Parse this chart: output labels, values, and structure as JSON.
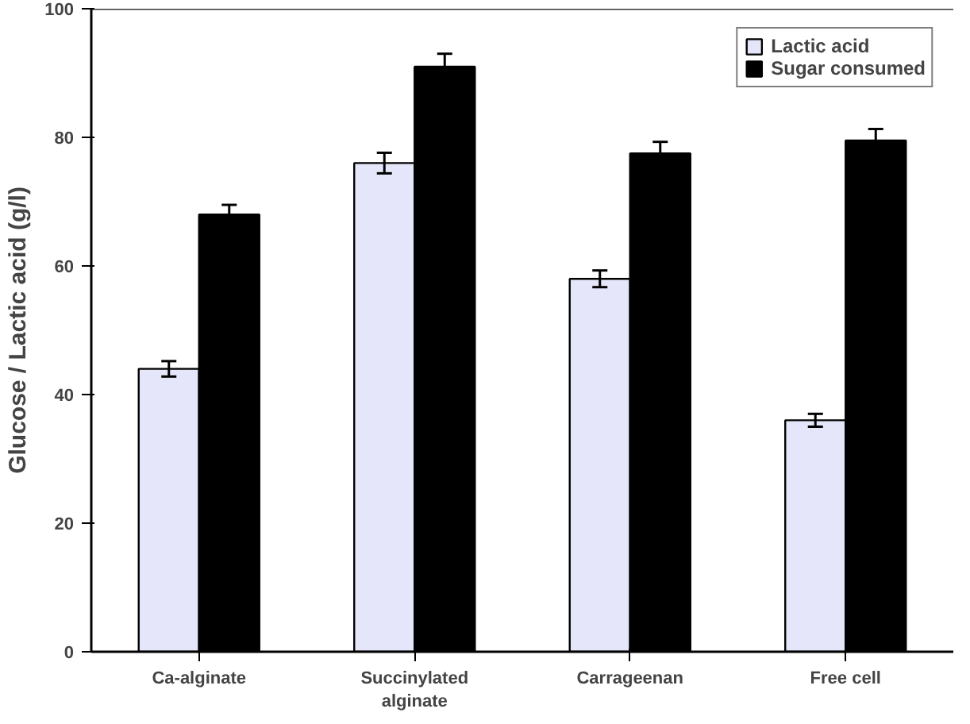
{
  "chart_data": {
    "type": "bar",
    "ylabel": "Glucose / Lactic acid (g/l)",
    "categories": [
      "Ca-alginate",
      "Succinylated alginate",
      "Carrageenan",
      "Free cell"
    ],
    "series": [
      {
        "name": "Lactic acid",
        "color": "#e6e6fa",
        "values": [
          44,
          76,
          58,
          36
        ],
        "errors": [
          1.2,
          1.6,
          1.3,
          1.0
        ]
      },
      {
        "name": "Sugar consumed",
        "color": "#000000",
        "values": [
          68,
          91,
          77.5,
          79.5
        ],
        "errors": [
          1.5,
          2.0,
          1.8,
          1.8
        ]
      }
    ],
    "ylim": [
      0,
      100
    ],
    "yticks": [
      0,
      20,
      40,
      60,
      80,
      100
    ],
    "grid": false,
    "legend": "top right"
  }
}
